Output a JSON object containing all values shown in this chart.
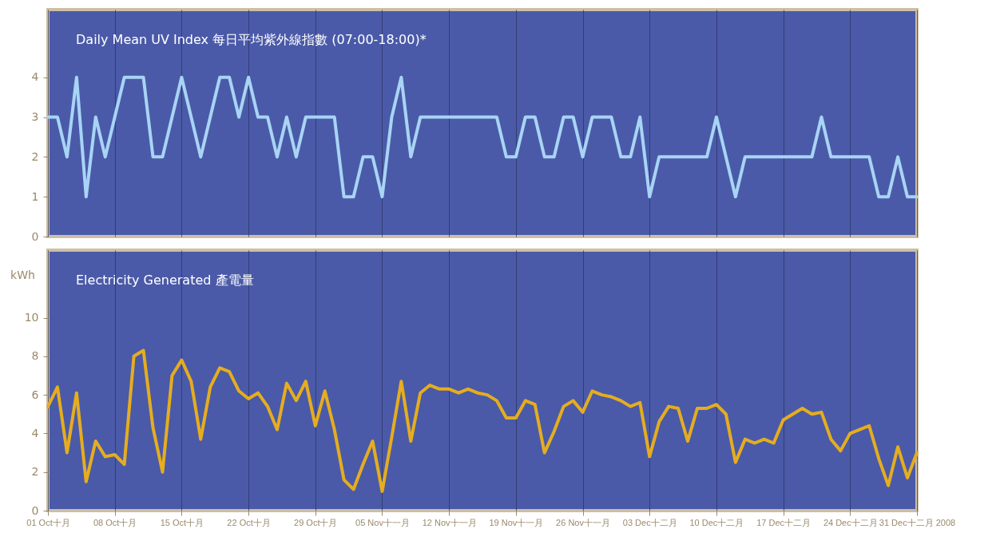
{
  "chart_data": [
    {
      "type": "line",
      "title": "Daily Mean UV Index 每日平均紫外線指數 (07:00-18:00)*",
      "grid": "x",
      "tick_labels": "y",
      "xlim": [
        "2008-10-01",
        "2008-12-31"
      ],
      "xticks": [
        {
          "value": "2008-10-01",
          "label": null
        },
        {
          "value": "2008-10-08",
          "label": null
        },
        {
          "value": "2008-10-15",
          "label": null
        },
        {
          "value": "2008-10-22",
          "label": null
        },
        {
          "value": "2008-10-29",
          "label": null
        },
        {
          "value": "2008-11-05",
          "label": null
        },
        {
          "value": "2008-11-12",
          "label": null
        },
        {
          "value": "2008-11-19",
          "label": null
        },
        {
          "value": "2008-11-26",
          "label": null
        },
        {
          "value": "2008-12-03",
          "label": null
        },
        {
          "value": "2008-12-10",
          "label": null
        },
        {
          "value": "2008-12-17",
          "label": null
        },
        {
          "value": "2008-12-24",
          "label": null
        },
        {
          "value": "2008-12-31",
          "label": null
        }
      ],
      "ylim": [
        0,
        5.7
      ],
      "yticks": [
        0,
        1,
        2,
        3,
        4
      ],
      "x": [
        "2008-10-01",
        "2008-10-02",
        "2008-10-03",
        "2008-10-04",
        "2008-10-05",
        "2008-10-06",
        "2008-10-07",
        "2008-10-08",
        "2008-10-09",
        "2008-10-10",
        "2008-10-11",
        "2008-10-12",
        "2008-10-13",
        "2008-10-14",
        "2008-10-15",
        "2008-10-16",
        "2008-10-17",
        "2008-10-18",
        "2008-10-19",
        "2008-10-20",
        "2008-10-21",
        "2008-10-22",
        "2008-10-23",
        "2008-10-24",
        "2008-10-25",
        "2008-10-26",
        "2008-10-27",
        "2008-10-28",
        "2008-10-29",
        "2008-10-30",
        "2008-10-31",
        "2008-11-01",
        "2008-11-02",
        "2008-11-03",
        "2008-11-04",
        "2008-11-05",
        "2008-11-06",
        "2008-11-07",
        "2008-11-08",
        "2008-11-09",
        "2008-11-10",
        "2008-11-11",
        "2008-11-12",
        "2008-11-13",
        "2008-11-14",
        "2008-11-15",
        "2008-11-16",
        "2008-11-17",
        "2008-11-18",
        "2008-11-19",
        "2008-11-20",
        "2008-11-21",
        "2008-11-22",
        "2008-11-23",
        "2008-11-24",
        "2008-11-25",
        "2008-11-26",
        "2008-11-27",
        "2008-11-28",
        "2008-11-29",
        "2008-11-30",
        "2008-12-01",
        "2008-12-02",
        "2008-12-03",
        "2008-12-04",
        "2008-12-05",
        "2008-12-06",
        "2008-12-07",
        "2008-12-08",
        "2008-12-09",
        "2008-12-10",
        "2008-12-11",
        "2008-12-12",
        "2008-12-13",
        "2008-12-14",
        "2008-12-15",
        "2008-12-16",
        "2008-12-17",
        "2008-12-18",
        "2008-12-19",
        "2008-12-20",
        "2008-12-21",
        "2008-12-22",
        "2008-12-23",
        "2008-12-24",
        "2008-12-25",
        "2008-12-26",
        "2008-12-27",
        "2008-12-28",
        "2008-12-29",
        "2008-12-30",
        "2008-12-31"
      ],
      "series": [
        {
          "color": "#a8d4f5",
          "values": [
            3,
            3,
            2,
            4,
            1,
            3,
            2,
            3,
            4,
            4,
            4,
            2,
            2,
            3,
            4,
            3,
            2,
            3,
            4,
            4,
            3,
            4,
            3,
            3,
            2,
            3,
            2,
            3,
            3,
            3,
            3,
            1,
            1,
            2,
            2,
            1,
            3,
            4,
            2,
            3,
            3,
            3,
            3,
            3,
            3,
            3,
            3,
            3,
            2,
            2,
            3,
            3,
            2,
            2,
            3,
            3,
            2,
            3,
            3,
            3,
            2,
            2,
            3,
            1,
            2,
            2,
            2,
            2,
            2,
            2,
            3,
            2,
            1,
            2,
            2,
            2,
            2,
            2,
            2,
            2,
            2,
            3,
            2,
            2,
            2,
            2,
            2,
            1,
            1,
            2,
            1,
            1
          ]
        }
      ]
    },
    {
      "type": "line",
      "title": "Electricity Generated 產電量",
      "ylabel": "kWh",
      "grid": "x",
      "xlim": [
        "2008-10-01",
        "2008-12-31"
      ],
      "xticks": [
        {
          "value": "2008-10-01",
          "label": "01 Oct十月"
        },
        {
          "value": "2008-10-08",
          "label": "08 Oct十月"
        },
        {
          "value": "2008-10-15",
          "label": "15 Oct十月"
        },
        {
          "value": "2008-10-22",
          "label": "22 Oct十月"
        },
        {
          "value": "2008-10-29",
          "label": "29 Oct十月"
        },
        {
          "value": "2008-11-05",
          "label": "05 Nov十一月"
        },
        {
          "value": "2008-11-12",
          "label": "12 Nov十一月"
        },
        {
          "value": "2008-11-19",
          "label": "19 Nov十一月"
        },
        {
          "value": "2008-11-26",
          "label": "26 Nov十一月"
        },
        {
          "value": "2008-12-03",
          "label": "03 Dec十二月"
        },
        {
          "value": "2008-12-10",
          "label": "10 Dec十二月"
        },
        {
          "value": "2008-12-17",
          "label": "17 Dec十二月"
        },
        {
          "value": "2008-12-24",
          "label": "24 Dec十二月"
        },
        {
          "value": "2008-12-31",
          "label": "31 Dec十二月 2008"
        }
      ],
      "ylim": [
        0,
        13.5
      ],
      "yticks": [
        0,
        2,
        4,
        6,
        8,
        10
      ],
      "x": [
        "2008-10-01",
        "2008-10-02",
        "2008-10-03",
        "2008-10-04",
        "2008-10-05",
        "2008-10-06",
        "2008-10-07",
        "2008-10-08",
        "2008-10-09",
        "2008-10-10",
        "2008-10-11",
        "2008-10-12",
        "2008-10-13",
        "2008-10-14",
        "2008-10-15",
        "2008-10-16",
        "2008-10-17",
        "2008-10-18",
        "2008-10-19",
        "2008-10-20",
        "2008-10-21",
        "2008-10-22",
        "2008-10-23",
        "2008-10-24",
        "2008-10-25",
        "2008-10-26",
        "2008-10-27",
        "2008-10-28",
        "2008-10-29",
        "2008-10-30",
        "2008-10-31",
        "2008-11-01",
        "2008-11-02",
        "2008-11-03",
        "2008-11-04",
        "2008-11-05",
        "2008-11-06",
        "2008-11-07",
        "2008-11-08",
        "2008-11-09",
        "2008-11-10",
        "2008-11-11",
        "2008-11-12",
        "2008-11-13",
        "2008-11-14",
        "2008-11-15",
        "2008-11-16",
        "2008-11-17",
        "2008-11-18",
        "2008-11-19",
        "2008-11-20",
        "2008-11-21",
        "2008-11-22",
        "2008-11-23",
        "2008-11-24",
        "2008-11-25",
        "2008-11-26",
        "2008-11-27",
        "2008-11-28",
        "2008-11-29",
        "2008-11-30",
        "2008-12-01",
        "2008-12-02",
        "2008-12-03",
        "2008-12-04",
        "2008-12-05",
        "2008-12-06",
        "2008-12-07",
        "2008-12-08",
        "2008-12-09",
        "2008-12-10",
        "2008-12-11",
        "2008-12-12",
        "2008-12-13",
        "2008-12-14",
        "2008-12-15",
        "2008-12-16",
        "2008-12-17",
        "2008-12-18",
        "2008-12-19",
        "2008-12-20",
        "2008-12-21",
        "2008-12-22",
        "2008-12-23",
        "2008-12-24",
        "2008-12-25",
        "2008-12-26",
        "2008-12-27",
        "2008-12-28",
        "2008-12-29",
        "2008-12-30",
        "2008-12-31"
      ],
      "series": [
        {
          "color": "#e5ad1f",
          "values": [
            5.4,
            6.4,
            3.0,
            6.1,
            1.5,
            3.6,
            2.8,
            2.9,
            2.4,
            8.0,
            8.3,
            4.3,
            2.0,
            7.0,
            7.8,
            6.7,
            3.7,
            6.4,
            7.4,
            7.2,
            6.2,
            5.8,
            6.1,
            5.4,
            4.2,
            6.6,
            5.7,
            6.7,
            4.4,
            6.2,
            4.2,
            1.6,
            1.1,
            2.4,
            3.6,
            1.0,
            3.8,
            6.7,
            3.6,
            6.1,
            6.5,
            6.3,
            6.3,
            6.1,
            6.3,
            6.1,
            6.0,
            5.7,
            4.8,
            4.8,
            5.7,
            5.5,
            3.0,
            4.1,
            5.4,
            5.7,
            5.1,
            6.2,
            6.0,
            5.9,
            5.7,
            5.4,
            5.6,
            2.8,
            4.6,
            5.4,
            5.3,
            3.6,
            5.3,
            5.3,
            5.5,
            5.0,
            2.5,
            3.7,
            3.5,
            3.7,
            3.5,
            4.7,
            5.0,
            5.3,
            5.0,
            5.1,
            3.7,
            3.1,
            4.0,
            4.2,
            4.4,
            2.7,
            1.3,
            3.3,
            1.7,
            3.0
          ]
        }
      ]
    }
  ]
}
